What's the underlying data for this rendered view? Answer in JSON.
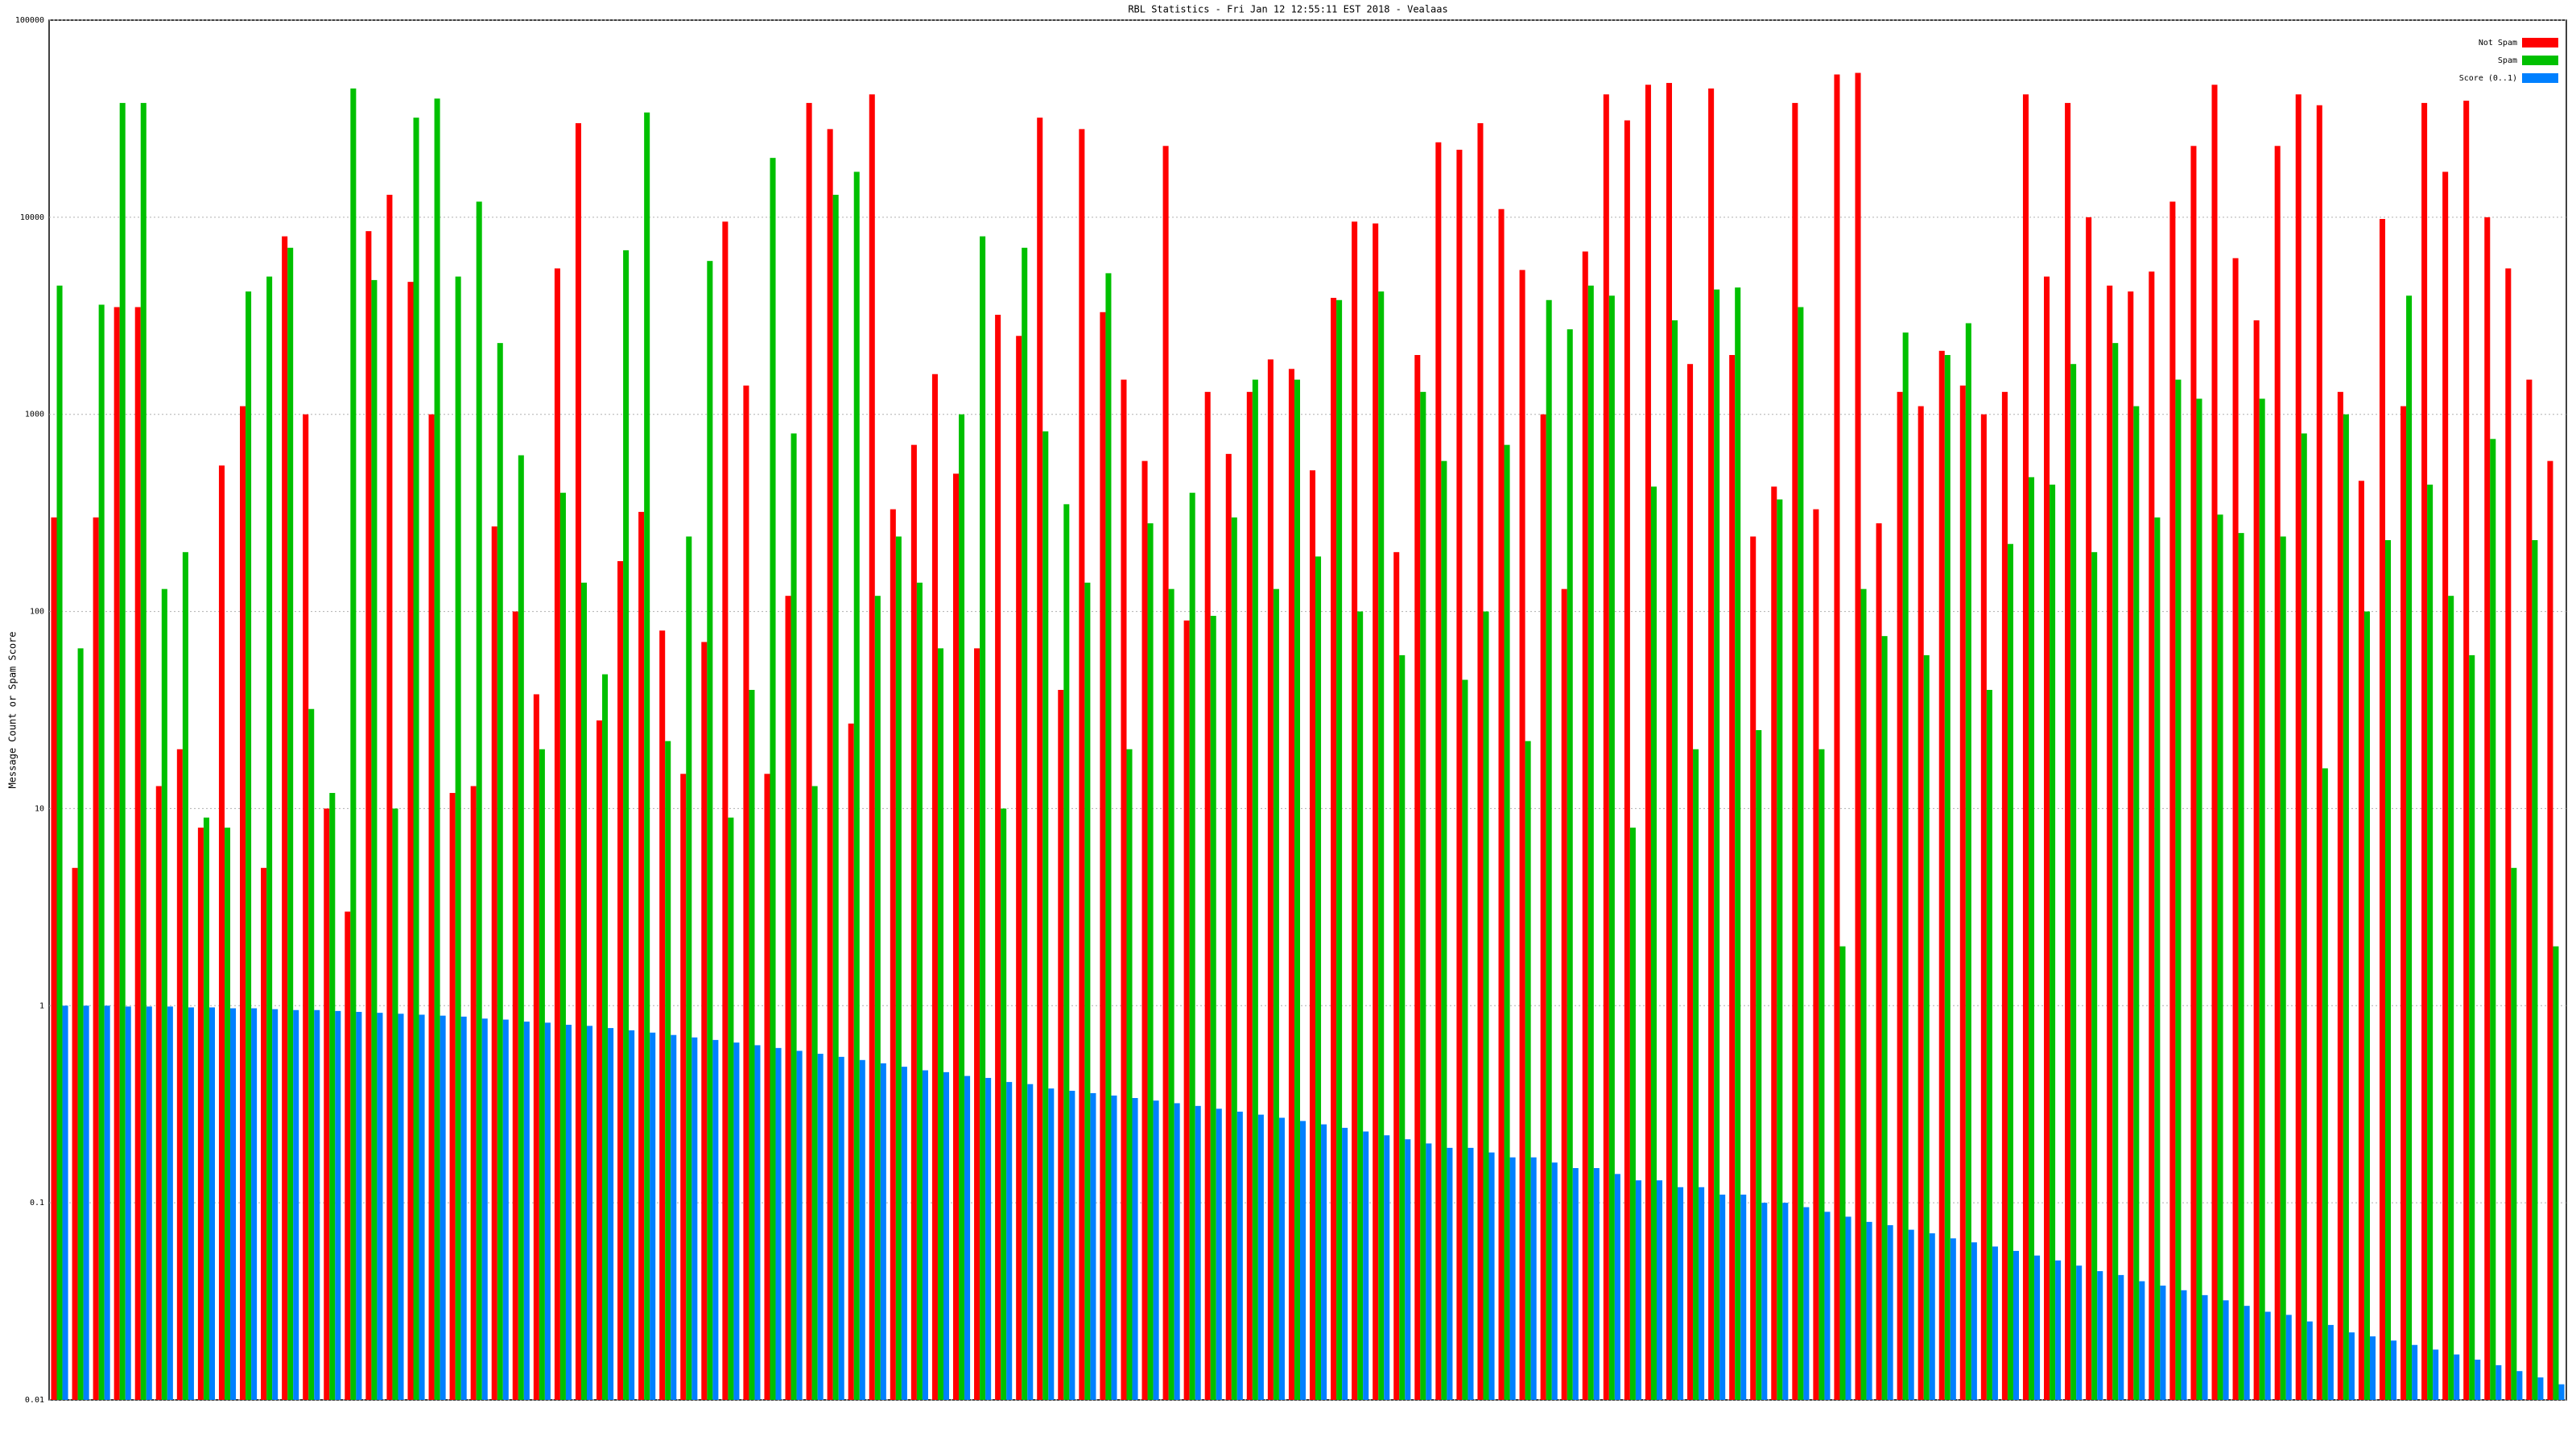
{
  "chart_data": {
    "type": "bar",
    "title": "RBL Statistics - Fri Jan 12 12:55:11 EST 2018 - Vealaas",
    "y_label": "Message Count or Spam Score",
    "log_scale": true,
    "grid": true,
    "legend": "upper right",
    "ylim": [
      0.01,
      100000
    ],
    "yticks": [
      0.01,
      0.1,
      1,
      10,
      100,
      1000,
      10000,
      100000
    ],
    "categories": [
      null,
      null,
      null,
      null,
      null,
      null,
      null,
      null,
      null,
      null,
      null,
      null,
      null,
      null,
      null,
      null,
      null,
      null,
      null,
      null,
      null,
      null,
      null,
      null,
      null,
      null,
      null,
      null,
      null,
      null,
      null,
      null,
      null,
      null,
      null,
      null,
      null,
      null,
      null,
      null,
      null,
      null,
      null,
      null,
      null,
      null,
      null,
      null,
      null,
      null,
      null,
      null,
      null,
      null,
      null,
      null,
      null,
      null,
      null,
      null,
      null,
      null,
      null,
      null,
      null,
      null,
      null,
      null,
      null,
      null,
      null,
      null,
      null,
      null,
      null,
      null,
      null,
      null,
      null,
      null,
      null,
      null,
      null,
      null,
      null,
      null,
      null,
      null,
      null,
      null,
      null,
      null,
      null,
      null,
      null,
      null,
      null,
      null,
      null,
      null,
      null,
      null,
      null,
      null,
      null,
      null,
      null,
      null,
      null,
      null,
      null,
      null,
      null,
      null,
      null,
      null,
      null,
      null,
      null,
      null
    ],
    "series": [
      {
        "name": "Not Spam",
        "color": "#ff0000",
        "values": [
          300,
          5,
          300,
          3500,
          3500,
          13,
          20,
          8,
          550,
          1100,
          5,
          8000,
          1000,
          10,
          3,
          8500,
          13000,
          4700,
          1000,
          12,
          13,
          270,
          100,
          38,
          5500,
          30000,
          28,
          180,
          320,
          80,
          15,
          70,
          9500,
          1400,
          15,
          120,
          38000,
          28000,
          27,
          42000,
          330,
          700,
          1600,
          500,
          65,
          3200,
          2500,
          32000,
          40,
          28000,
          3300,
          1500,
          580,
          23000,
          90,
          1300,
          630,
          1300,
          1900,
          1700,
          520,
          3900,
          9500,
          9300,
          200,
          2000,
          24000,
          22000,
          30000,
          11000,
          5400,
          1000,
          130,
          6700,
          42000,
          31000,
          47000,
          48000,
          1800,
          45000,
          2000,
          240,
          430,
          38000,
          330,
          53000,
          54000,
          280,
          1300,
          1100,
          2100,
          1400,
          1000,
          1300,
          42000,
          5000,
          38000,
          10000,
          4500,
          4200,
          5300,
          12000,
          23000,
          47000,
          6200,
          3000,
          23000,
          42000,
          37000,
          1300,
          460,
          9800,
          1100,
          38000,
          17000,
          39000,
          10000,
          5500,
          1500,
          580
        ]
      },
      {
        "name": "Spam",
        "color": "#00c000",
        "values": [
          4500,
          65,
          3600,
          38000,
          38000,
          130,
          200,
          9,
          8,
          4200,
          5000,
          7000,
          32,
          12,
          45000,
          4800,
          10,
          32000,
          40000,
          5000,
          12000,
          2300,
          620,
          20,
          400,
          140,
          48,
          6800,
          34000,
          22,
          240,
          6000,
          9,
          40,
          20000,
          800,
          13,
          13000,
          17000,
          120,
          240,
          140,
          65,
          1000,
          8000,
          10,
          7000,
          820,
          350,
          140,
          5200,
          20,
          280,
          130,
          400,
          95,
          300,
          1500,
          130,
          1500,
          190,
          3800,
          100,
          4200,
          60,
          1300,
          580,
          45,
          100,
          700,
          22,
          3800,
          2700,
          4500,
          4000,
          8,
          430,
          3000,
          20,
          4300,
          4400,
          25,
          370,
          3500,
          20,
          2,
          130,
          75,
          2600,
          60,
          2000,
          2900,
          40,
          220,
          480,
          440,
          1800,
          200,
          2300,
          1100,
          300,
          1500,
          1200,
          310,
          250,
          1200,
          240,
          800,
          16,
          1000,
          100,
          230,
          4000,
          440,
          120,
          60,
          750,
          5,
          230,
          2
        ]
      },
      {
        "name": "Score (0..1)",
        "color": "#0080ff",
        "values": [
          1,
          1,
          1,
          0.99,
          0.99,
          0.99,
          0.98,
          0.98,
          0.97,
          0.97,
          0.96,
          0.95,
          0.95,
          0.94,
          0.93,
          0.92,
          0.91,
          0.9,
          0.89,
          0.88,
          0.86,
          0.85,
          0.83,
          0.82,
          0.8,
          0.79,
          0.77,
          0.75,
          0.73,
          0.71,
          0.69,
          0.67,
          0.65,
          0.63,
          0.61,
          0.59,
          0.57,
          0.55,
          0.53,
          0.51,
          0.49,
          0.47,
          0.46,
          0.44,
          0.43,
          0.41,
          0.4,
          0.38,
          0.37,
          0.36,
          0.35,
          0.34,
          0.33,
          0.32,
          0.31,
          0.3,
          0.29,
          0.28,
          0.27,
          0.26,
          0.25,
          0.24,
          0.23,
          0.22,
          0.21,
          0.2,
          0.19,
          0.19,
          0.18,
          0.17,
          0.17,
          0.16,
          0.15,
          0.15,
          0.14,
          0.13,
          0.13,
          0.12,
          0.12,
          0.11,
          0.11,
          0.1,
          0.1,
          0.095,
          0.09,
          0.085,
          0.08,
          0.077,
          0.073,
          0.07,
          0.066,
          0.063,
          0.06,
          0.057,
          0.054,
          0.051,
          0.048,
          0.045,
          0.043,
          0.04,
          0.038,
          0.036,
          0.034,
          0.032,
          0.03,
          0.028,
          0.027,
          0.025,
          0.024,
          0.022,
          0.021,
          0.02,
          0.019,
          0.018,
          0.017,
          0.016,
          0.015,
          0.014,
          0.013,
          0.012
        ]
      }
    ]
  }
}
